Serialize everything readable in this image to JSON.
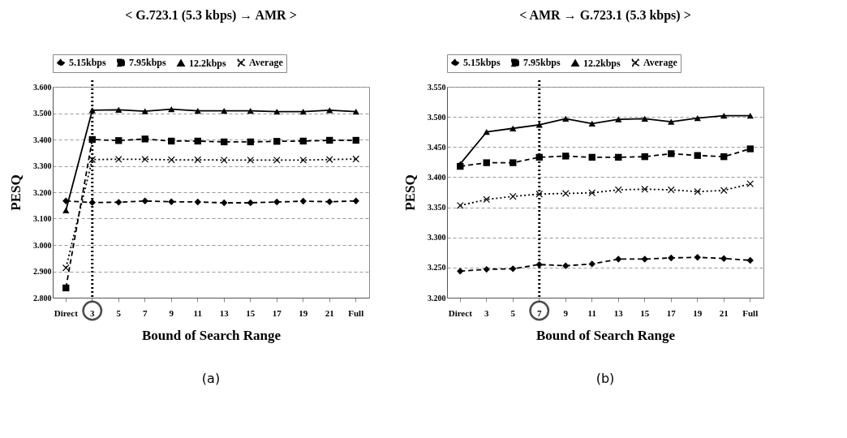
{
  "chart_data": [
    {
      "type": "line",
      "title": "< G.723.1 (5.3 kbps) → AMR >",
      "xlabel": "Bound of Search Range",
      "ylabel": "PESQ",
      "categories": [
        "Direct",
        "3",
        "5",
        "7",
        "9",
        "11",
        "13",
        "15",
        "17",
        "19",
        "21",
        "Full"
      ],
      "series": [
        {
          "name": "5.15kbps",
          "color": "#000000",
          "marker": "diamond",
          "line_style": "dashed",
          "values": [
            3.167,
            3.161,
            3.162,
            3.167,
            3.164,
            3.163,
            3.16,
            3.16,
            3.163,
            3.166,
            3.164,
            3.167
          ]
        },
        {
          "name": "7.95kbps",
          "color": "#000000",
          "marker": "square",
          "line_style": "dashed",
          "values": [
            2.837,
            3.4,
            3.396,
            3.402,
            3.394,
            3.394,
            3.391,
            3.391,
            3.393,
            3.394,
            3.397,
            3.397
          ]
        },
        {
          "name": "12.2kbps",
          "color": "#000000",
          "marker": "triangle",
          "line_style": "solid",
          "values": [
            3.131,
            3.511,
            3.513,
            3.507,
            3.515,
            3.509,
            3.509,
            3.509,
            3.506,
            3.506,
            3.511,
            3.506
          ]
        },
        {
          "name": "Average",
          "color": "#000000",
          "marker": "cross",
          "line_style": "dotted",
          "values": [
            2.913,
            3.324,
            3.325,
            3.325,
            3.323,
            3.323,
            3.322,
            3.322,
            3.322,
            3.322,
            3.324,
            3.326
          ]
        }
      ],
      "ylim": [
        2.8,
        3.6
      ],
      "yticks": [
        {
          "value": 2.8,
          "label": "2.800"
        },
        {
          "value": 2.9,
          "label": "2.900"
        },
        {
          "value": 3.0,
          "label": "3.000"
        },
        {
          "value": 3.1,
          "label": "3.100"
        },
        {
          "value": 3.2,
          "label": "3.200"
        },
        {
          "value": 3.3,
          "label": "3.300"
        },
        {
          "value": 3.4,
          "label": "3.400"
        },
        {
          "value": 3.5,
          "label": "3.500"
        },
        {
          "value": 3.6,
          "label": "3.600"
        }
      ],
      "ref_lines": [
        {
          "axis": "x",
          "value": "3",
          "line_style": "dotted",
          "color": "#000000"
        }
      ],
      "grid": "y",
      "legend": "top",
      "annotations": [
        "(a)"
      ]
    },
    {
      "type": "line",
      "title": "< AMR → G.723.1 (5.3 kbps) >",
      "xlabel": "Bound of Search Range",
      "ylabel": "PESQ",
      "categories": [
        "Direct",
        "3",
        "5",
        "7",
        "9",
        "11",
        "13",
        "15",
        "17",
        "19",
        "21",
        "Full"
      ],
      "series": [
        {
          "name": "5.15kbps",
          "color": "#000000",
          "marker": "diamond",
          "line_style": "dashed",
          "values": [
            3.244,
            3.247,
            3.248,
            3.255,
            3.253,
            3.256,
            3.264,
            3.264,
            3.266,
            3.267,
            3.265,
            3.262
          ]
        },
        {
          "name": "7.95kbps",
          "color": "#000000",
          "marker": "square",
          "line_style": "dashed",
          "values": [
            3.418,
            3.424,
            3.424,
            3.433,
            3.435,
            3.433,
            3.433,
            3.434,
            3.439,
            3.436,
            3.434,
            3.447
          ]
        },
        {
          "name": "12.2kbps",
          "color": "#000000",
          "marker": "triangle",
          "line_style": "solid",
          "values": [
            3.422,
            3.475,
            3.481,
            3.487,
            3.497,
            3.489,
            3.496,
            3.497,
            3.492,
            3.498,
            3.502,
            3.502
          ]
        },
        {
          "name": "Average",
          "color": "#000000",
          "marker": "cross",
          "line_style": "dotted",
          "values": [
            3.353,
            3.363,
            3.368,
            3.372,
            3.373,
            3.374,
            3.379,
            3.38,
            3.379,
            3.376,
            3.378,
            3.389
          ]
        }
      ],
      "ylim": [
        3.2,
        3.55
      ],
      "yticks": [
        {
          "value": 3.2,
          "label": "3.200"
        },
        {
          "value": 3.25,
          "label": "3.250"
        },
        {
          "value": 3.3,
          "label": "3.300"
        },
        {
          "value": 3.35,
          "label": "3.350"
        },
        {
          "value": 3.4,
          "label": "3.400"
        },
        {
          "value": 3.45,
          "label": "3.450"
        },
        {
          "value": 3.5,
          "label": "3.500"
        },
        {
          "value": 3.55,
          "label": "3.550"
        }
      ],
      "ref_lines": [
        {
          "axis": "x",
          "value": "7",
          "line_style": "dotted",
          "color": "#000000"
        }
      ],
      "grid": "y",
      "legend": "top",
      "annotations": [
        "(b)"
      ]
    }
  ]
}
